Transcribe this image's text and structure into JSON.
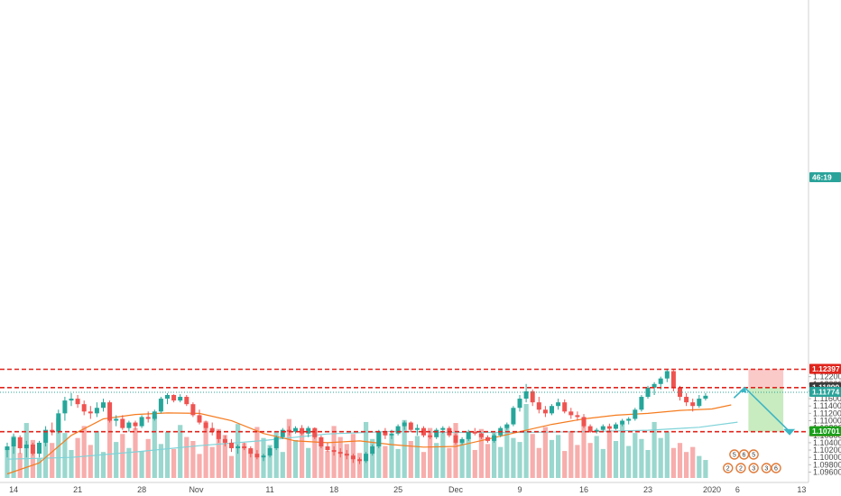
{
  "chart_data": {
    "type": "candlestick",
    "colors": {
      "up": "#26a69a",
      "down": "#ef5350",
      "volume_up": "#8fd3c9",
      "volume_down": "#f6a5a3",
      "ma_fast": "#f57c1f",
      "ma_slow": "#7fd3d9",
      "level_line": "#e0241c",
      "dotted_line": "#2aa39a",
      "target_zone": "#bfe8b5",
      "stop_zone": "#f9c1c0",
      "projection_arrow": "#3bb5c4"
    },
    "y_axis": {
      "min": 1.0944,
      "max": 1.2246,
      "ticks": [
        "1.12200",
        "1.12000",
        "1.11800",
        "1.11600",
        "1.11400",
        "1.11200",
        "1.11000",
        "1.10800",
        "1.10600",
        "1.10400",
        "1.10200",
        "1.10000",
        "1.09800",
        "1.09600"
      ]
    },
    "x_axis": {
      "ticks": [
        {
          "label": "14",
          "bar": 1
        },
        {
          "label": "21",
          "bar": 11
        },
        {
          "label": "28",
          "bar": 21
        },
        {
          "label": "Nov",
          "bar": 29.5
        },
        {
          "label": "11",
          "bar": 41
        },
        {
          "label": "18",
          "bar": 51
        },
        {
          "label": "25",
          "bar": 61
        },
        {
          "label": "Dec",
          "bar": 70
        },
        {
          "label": "9",
          "bar": 80
        },
        {
          "label": "16",
          "bar": 90
        },
        {
          "label": "23",
          "bar": 100
        },
        {
          "label": "2020",
          "bar": 110
        },
        {
          "label": "6",
          "bar": 114
        },
        {
          "label": "13",
          "bar": 124
        }
      ]
    },
    "price_labels": [
      {
        "text": "1.12400",
        "value": 1.124,
        "color": "#e0241c"
      },
      {
        "text": "1.12397",
        "value": 1.12397,
        "color": "#e0241c"
      },
      {
        "text": "1.11900",
        "value": 1.119,
        "color": "#e0241c"
      },
      {
        "text": "1.11899",
        "value": 1.11899,
        "color": "#3c3c3c"
      },
      {
        "text": "1.11774",
        "value": 1.11774,
        "color": "#2aa39a"
      },
      {
        "text": "46:19",
        "value": 1.1762,
        "color": "#2aa39a"
      },
      {
        "text": "1.10700",
        "value": 1.107,
        "color": "#e0241c"
      },
      {
        "text": "1.10701",
        "value": 1.10701,
        "color": "#1aa01a"
      }
    ],
    "levels": [
      1.124,
      1.119,
      1.107
    ],
    "dotted_level": 1.11774,
    "candles": [
      [
        1.102,
        1.104,
        1.1,
        1.103
      ],
      [
        1.103,
        1.1065,
        1.101,
        1.1055
      ],
      [
        1.1055,
        1.106,
        1.101,
        1.1025
      ],
      [
        1.1025,
        1.1045,
        1.1,
        1.1035
      ],
      [
        1.1035,
        1.104,
        1.1005,
        1.101
      ],
      [
        1.101,
        1.1045,
        1.1,
        1.104
      ],
      [
        1.104,
        1.1085,
        1.103,
        1.1075
      ],
      [
        1.1075,
        1.1095,
        1.106,
        1.107
      ],
      [
        1.107,
        1.113,
        1.1065,
        1.112
      ],
      [
        1.112,
        1.1165,
        1.11,
        1.1155
      ],
      [
        1.1155,
        1.1175,
        1.114,
        1.116
      ],
      [
        1.116,
        1.117,
        1.1135,
        1.1145
      ],
      [
        1.1145,
        1.1155,
        1.1115,
        1.1125
      ],
      [
        1.1125,
        1.114,
        1.1105,
        1.112
      ],
      [
        1.112,
        1.115,
        1.111,
        1.1135
      ],
      [
        1.1135,
        1.116,
        1.1125,
        1.115
      ],
      [
        1.115,
        1.1155,
        1.1095,
        1.11
      ],
      [
        1.11,
        1.1115,
        1.1085,
        1.1105
      ],
      [
        1.1105,
        1.1115,
        1.1075,
        1.108
      ],
      [
        1.108,
        1.11,
        1.107,
        1.1095
      ],
      [
        1.1095,
        1.11,
        1.1075,
        1.1085
      ],
      [
        1.1085,
        1.1115,
        1.108,
        1.111
      ],
      [
        1.111,
        1.1125,
        1.1095,
        1.1105
      ],
      [
        1.1105,
        1.113,
        1.11,
        1.1125
      ],
      [
        1.1125,
        1.1165,
        1.112,
        1.116
      ],
      [
        1.116,
        1.1175,
        1.1145,
        1.117
      ],
      [
        1.117,
        1.1172,
        1.115,
        1.1155
      ],
      [
        1.1155,
        1.1172,
        1.115,
        1.1165
      ],
      [
        1.1165,
        1.117,
        1.114,
        1.1145
      ],
      [
        1.1145,
        1.115,
        1.111,
        1.1115
      ],
      [
        1.1115,
        1.113,
        1.109,
        1.1095
      ],
      [
        1.1095,
        1.11,
        1.107,
        1.108
      ],
      [
        1.108,
        1.1095,
        1.106,
        1.107
      ],
      [
        1.107,
        1.1075,
        1.104,
        1.105
      ],
      [
        1.105,
        1.106,
        1.103,
        1.104
      ],
      [
        1.104,
        1.105,
        1.1015,
        1.1025
      ],
      [
        1.1025,
        1.1035,
        1.101,
        1.103
      ],
      [
        1.103,
        1.104,
        1.102,
        1.1025
      ],
      [
        1.1025,
        1.103,
        1.1,
        1.101
      ],
      [
        1.101,
        1.102,
        1.0995,
        1.1
      ],
      [
        1.1,
        1.101,
        1.099,
        1.1005
      ],
      [
        1.1005,
        1.103,
        1.1,
        1.1025
      ],
      [
        1.1025,
        1.106,
        1.102,
        1.1055
      ],
      [
        1.1055,
        1.108,
        1.105,
        1.1075
      ],
      [
        1.1075,
        1.1085,
        1.106,
        1.107
      ],
      [
        1.107,
        1.1085,
        1.1065,
        1.108
      ],
      [
        1.108,
        1.1088,
        1.106,
        1.1065
      ],
      [
        1.1065,
        1.1085,
        1.1055,
        1.108
      ],
      [
        1.108,
        1.1082,
        1.105,
        1.1055
      ],
      [
        1.1055,
        1.106,
        1.1025,
        1.103
      ],
      [
        1.103,
        1.104,
        1.1015,
        1.102
      ],
      [
        1.102,
        1.103,
        1.1005,
        1.1015
      ],
      [
        1.1015,
        1.1025,
        1.1,
        1.101
      ],
      [
        1.101,
        1.102,
        1.0995,
        1.1005
      ],
      [
        1.1005,
        1.101,
        1.0985,
        1.0995
      ],
      [
        1.0995,
        1.1,
        1.0982,
        1.099
      ],
      [
        1.099,
        1.1015,
        1.0985,
        1.101
      ],
      [
        1.101,
        1.1035,
        1.1005,
        1.103
      ],
      [
        1.103,
        1.1075,
        1.1025,
        1.107
      ],
      [
        1.107,
        1.108,
        1.105,
        1.106
      ],
      [
        1.106,
        1.1075,
        1.105,
        1.1065
      ],
      [
        1.1065,
        1.109,
        1.106,
        1.1085
      ],
      [
        1.1085,
        1.11,
        1.1075,
        1.1095
      ],
      [
        1.1095,
        1.1098,
        1.107,
        1.1075
      ],
      [
        1.1075,
        1.109,
        1.106,
        1.108
      ],
      [
        1.108,
        1.1085,
        1.1055,
        1.106
      ],
      [
        1.106,
        1.107,
        1.105,
        1.1055
      ],
      [
        1.1055,
        1.108,
        1.105,
        1.1075
      ],
      [
        1.1075,
        1.1085,
        1.1065,
        1.108
      ],
      [
        1.108,
        1.1085,
        1.1055,
        1.106
      ],
      [
        1.106,
        1.1065,
        1.1035,
        1.104
      ],
      [
        1.104,
        1.1055,
        1.1035,
        1.105
      ],
      [
        1.105,
        1.1075,
        1.1045,
        1.107
      ],
      [
        1.107,
        1.108,
        1.106,
        1.1065
      ],
      [
        1.1065,
        1.1068,
        1.105,
        1.1055
      ],
      [
        1.1055,
        1.106,
        1.104,
        1.1045
      ],
      [
        1.1045,
        1.1065,
        1.104,
        1.106
      ],
      [
        1.106,
        1.1085,
        1.1055,
        1.108
      ],
      [
        1.108,
        1.1095,
        1.1075,
        1.109
      ],
      [
        1.109,
        1.114,
        1.1085,
        1.1135
      ],
      [
        1.1135,
        1.117,
        1.1125,
        1.116
      ],
      [
        1.116,
        1.12,
        1.115,
        1.118
      ],
      [
        1.118,
        1.1185,
        1.114,
        1.115
      ],
      [
        1.115,
        1.1165,
        1.112,
        1.113
      ],
      [
        1.113,
        1.114,
        1.111,
        1.112
      ],
      [
        1.112,
        1.1145,
        1.1115,
        1.114
      ],
      [
        1.114,
        1.116,
        1.113,
        1.115
      ],
      [
        1.115,
        1.1158,
        1.112,
        1.1125
      ],
      [
        1.1125,
        1.1135,
        1.1105,
        1.1115
      ],
      [
        1.1115,
        1.1125,
        1.11,
        1.111
      ],
      [
        1.111,
        1.1118,
        1.108,
        1.1085
      ],
      [
        1.1085,
        1.109,
        1.1067,
        1.107
      ],
      [
        1.107,
        1.108,
        1.1065,
        1.1075
      ],
      [
        1.1075,
        1.109,
        1.107,
        1.1085
      ],
      [
        1.1085,
        1.1092,
        1.1072,
        1.1078
      ],
      [
        1.1078,
        1.1095,
        1.1075,
        1.109
      ],
      [
        1.109,
        1.1105,
        1.1085,
        1.11
      ],
      [
        1.11,
        1.111,
        1.109,
        1.1105
      ],
      [
        1.1105,
        1.1135,
        1.11,
        1.113
      ],
      [
        1.113,
        1.117,
        1.1125,
        1.1165
      ],
      [
        1.1165,
        1.1195,
        1.116,
        1.119
      ],
      [
        1.119,
        1.1205,
        1.117,
        1.12
      ],
      [
        1.12,
        1.122,
        1.1185,
        1.1215
      ],
      [
        1.1215,
        1.124,
        1.1205,
        1.1235
      ],
      [
        1.1235,
        1.1238,
        1.118,
        1.119
      ],
      [
        1.119,
        1.1195,
        1.1155,
        1.1165
      ],
      [
        1.1165,
        1.1175,
        1.114,
        1.115
      ],
      [
        1.115,
        1.116,
        1.1125,
        1.114
      ],
      [
        1.114,
        1.117,
        1.1135,
        1.116
      ],
      [
        1.116,
        1.1175,
        1.1155,
        1.1168
      ]
    ],
    "volume": [
      30,
      42,
      25,
      55,
      38,
      20,
      48,
      35,
      60,
      45,
      28,
      40,
      52,
      33,
      47,
      26,
      58,
      36,
      44,
      30,
      50,
      27,
      39,
      62,
      34,
      46,
      29,
      53,
      41,
      37,
      24,
      57,
      31,
      49,
      43,
      22,
      54,
      35,
      28,
      51,
      40,
      33,
      46,
      26,
      59,
      38,
      45,
      30,
      48,
      36,
      27,
      52,
      41,
      34,
      44,
      25,
      56,
      39,
      47,
      32,
      43,
      29,
      58,
      37,
      42,
      26,
      50,
      35,
      45,
      30,
      55,
      38,
      41,
      28,
      49,
      34,
      46,
      31,
      53,
      40,
      36,
      74,
      44,
      30,
      51,
      38,
      43,
      27,
      47,
      33,
      58,
      35,
      42,
      29,
      48,
      37,
      54,
      32,
      45,
      39,
      28,
      56,
      40,
      46,
      30,
      35,
      26,
      31,
      22,
      18
    ],
    "ma_fast": [
      [
        0,
        1.0955
      ],
      [
        5,
        1.0985
      ],
      [
        10,
        1.106
      ],
      [
        15,
        1.1105
      ],
      [
        20,
        1.1117
      ],
      [
        25,
        1.1121
      ],
      [
        30,
        1.112
      ],
      [
        35,
        1.11
      ],
      [
        40,
        1.1065
      ],
      [
        45,
        1.1045
      ],
      [
        50,
        1.104
      ],
      [
        55,
        1.1045
      ],
      [
        60,
        1.1035
      ],
      [
        65,
        1.1028
      ],
      [
        70,
        1.103
      ],
      [
        75,
        1.105
      ],
      [
        80,
        1.107
      ],
      [
        85,
        1.109
      ],
      [
        90,
        1.1105
      ],
      [
        95,
        1.1115
      ],
      [
        100,
        1.112
      ],
      [
        105,
        1.1128
      ],
      [
        110,
        1.1132
      ],
      [
        113,
        1.1143
      ]
    ],
    "ma_slow": [
      [
        0,
        1.0995
      ],
      [
        10,
        1.1
      ],
      [
        20,
        1.1015
      ],
      [
        30,
        1.1032
      ],
      [
        40,
        1.1046
      ],
      [
        50,
        1.1064
      ],
      [
        60,
        1.1071
      ],
      [
        70,
        1.1068
      ],
      [
        80,
        1.1068
      ],
      [
        90,
        1.107
      ],
      [
        100,
        1.1074
      ],
      [
        108,
        1.1082
      ],
      [
        114,
        1.1096
      ]
    ],
    "projection": {
      "start_bar": 114,
      "peak": 1.119,
      "end_bar": 121,
      "target": 1.107,
      "stop_top": 1.124
    },
    "events": [
      {
        "label": "5",
        "bar": 113.5,
        "row": 0
      },
      {
        "label": "6",
        "bar": 115,
        "row": 0
      },
      {
        "label": "5",
        "bar": 116.5,
        "row": 0
      },
      {
        "label": "2",
        "bar": 112.5,
        "row": 1
      },
      {
        "label": "2",
        "bar": 114.5,
        "row": 1
      },
      {
        "label": "3",
        "bar": 116.5,
        "row": 1
      },
      {
        "label": "3",
        "bar": 118.5,
        "row": 1
      },
      {
        "label": "6",
        "bar": 120,
        "row": 1
      }
    ]
  }
}
